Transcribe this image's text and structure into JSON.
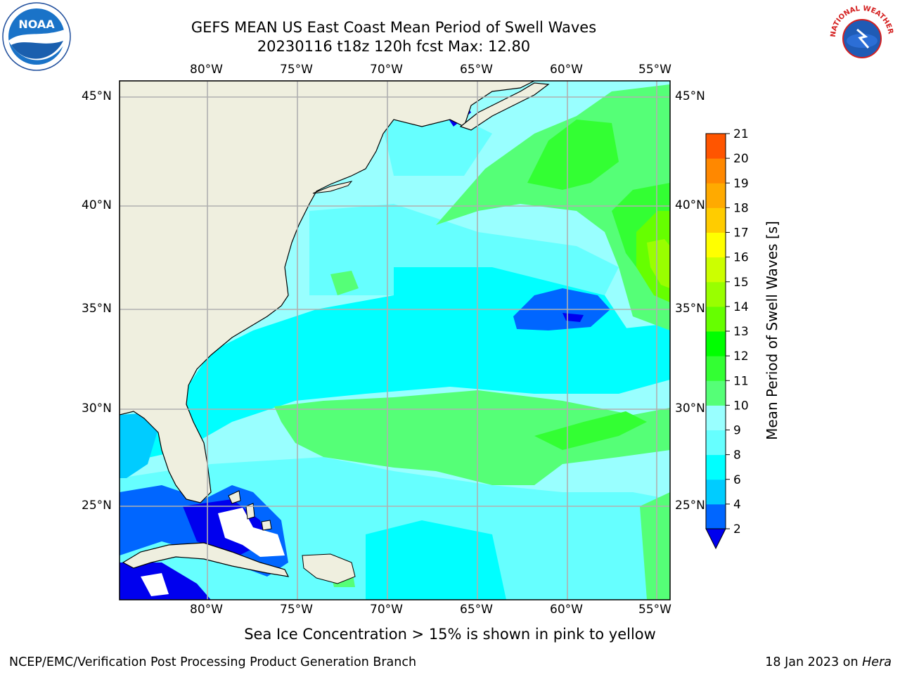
{
  "header": {
    "title_line1": "GEFS MEAN US East Coast Mean Period of Swell Waves",
    "title_line2": "20230116 t18z 120h fcst   Max: 12.80"
  },
  "logos": {
    "left": {
      "name": "noaa-logo",
      "text": "NOAA"
    },
    "right": {
      "name": "nws-logo",
      "text": "NATIONAL WEATHER SERVICE"
    }
  },
  "map": {
    "lon_labels": [
      "80°W",
      "75°W",
      "70°W",
      "65°W",
      "60°W",
      "55°W"
    ],
    "lat_labels": [
      "45°N",
      "40°N",
      "35°N",
      "30°N",
      "25°N"
    ],
    "land_color": "#efefdf",
    "grid_color": "#b0b0b0"
  },
  "colorbar": {
    "label": "Mean Period of Swell Waves [s]",
    "ticks": [
      "2",
      "4",
      "6",
      "8",
      "9",
      "10",
      "11",
      "12",
      "13",
      "14",
      "15",
      "16",
      "17",
      "18",
      "19",
      "20",
      "21"
    ],
    "colors": [
      "#0066ff",
      "#00ccff",
      "#00ffff",
      "#66ffff",
      "#99ffff",
      "#55ff77",
      "#33ff33",
      "#00ff00",
      "#66ff00",
      "#99ff00",
      "#ccff00",
      "#ffff00",
      "#ffcc00",
      "#ffaa00",
      "#ff8800",
      "#ff5500",
      "#ff2200",
      "#ff0000"
    ],
    "under_color": "#0000ee"
  },
  "notes": {
    "ice_note": "Sea Ice Concentration > 15% is shown in pink to yellow",
    "credit_left": "NCEP/EMC/Verification Post Processing Product Generation Branch",
    "date_text": "18 Jan 2023 on",
    "machine": "Hera"
  }
}
